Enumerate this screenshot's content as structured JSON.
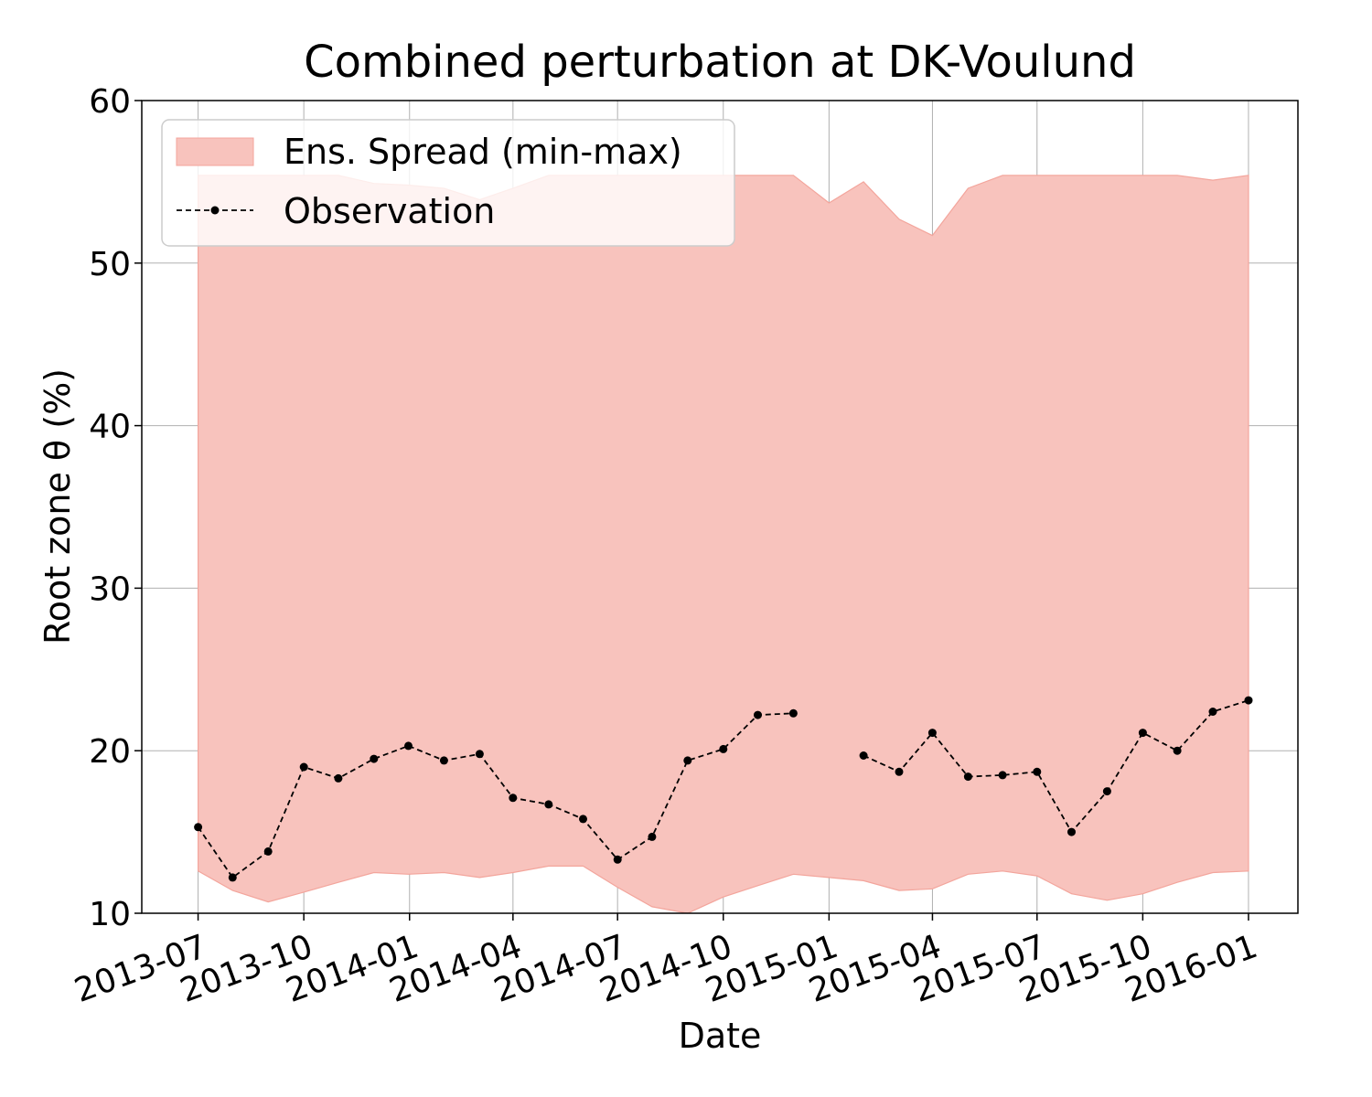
{
  "chart_data": {
    "type": "line",
    "title": "Combined perturbation at DK-Voulund",
    "xlabel": "Date",
    "ylabel": "Root zone θ  (%)",
    "ylim": [
      10,
      60
    ],
    "xlim": [
      "2013-05-13",
      "2016-02-13"
    ],
    "yticks": [
      10,
      20,
      30,
      40,
      50,
      60
    ],
    "xticks": [
      "2013-07",
      "2013-10",
      "2014-01",
      "2014-04",
      "2014-07",
      "2014-10",
      "2015-01",
      "2015-04",
      "2015-07",
      "2015-10",
      "2016-01"
    ],
    "grid": true,
    "legend_position": "upper-left",
    "colors": {
      "band": "#f8c3bd",
      "band_edge": "#f3a59c",
      "observation": "#000000"
    },
    "band": {
      "name": "Ens. Spread (min-max)",
      "x": [
        "2013-07-01",
        "2013-07-31",
        "2013-08-31",
        "2013-10-01",
        "2013-10-31",
        "2013-12-01",
        "2013-12-31",
        "2014-01-31",
        "2014-03-03",
        "2014-04-01",
        "2014-05-02",
        "2014-06-01",
        "2014-07-01",
        "2014-07-31",
        "2014-08-31",
        "2014-10-01",
        "2014-10-31",
        "2014-12-01",
        "2015-01-01",
        "2015-01-31",
        "2015-03-03",
        "2015-04-01",
        "2015-05-02",
        "2015-06-01",
        "2015-07-01",
        "2015-07-31",
        "2015-08-31",
        "2015-10-01",
        "2015-10-31",
        "2015-12-01",
        "2016-01-01"
      ],
      "upper": [
        55.4,
        55.4,
        55.4,
        55.4,
        55.4,
        54.9,
        54.8,
        54.6,
        53.9,
        54.6,
        55.4,
        55.4,
        55.4,
        55.4,
        55.4,
        55.4,
        55.4,
        55.4,
        53.7,
        55.0,
        52.7,
        51.7,
        54.6,
        55.4,
        55.4,
        55.4,
        55.4,
        55.4,
        55.4,
        55.1,
        55.4
      ],
      "lower": [
        12.6,
        11.4,
        10.7,
        11.3,
        11.9,
        12.5,
        12.4,
        12.5,
        12.2,
        12.5,
        12.9,
        12.9,
        11.6,
        10.4,
        10.0,
        11.0,
        11.7,
        12.4,
        12.2,
        12.0,
        11.4,
        11.5,
        12.4,
        12.6,
        12.3,
        11.2,
        10.8,
        11.2,
        11.9,
        12.5,
        12.6
      ]
    },
    "series": [
      {
        "name": "Observation",
        "x": [
          "2013-07-01",
          "2013-07-31",
          "2013-08-31",
          "2013-10-01",
          "2013-10-31",
          "2013-12-01",
          "2013-12-31",
          "2014-01-31",
          "2014-03-03",
          "2014-04-01",
          "2014-05-02",
          "2014-06-01",
          "2014-07-01",
          "2014-07-31",
          "2014-08-31",
          "2014-10-01",
          "2014-10-31",
          "2014-12-01",
          "2015-01-01",
          "2015-01-31",
          "2015-03-03",
          "2015-04-01",
          "2015-05-02",
          "2015-06-01",
          "2015-07-01",
          "2015-07-31",
          "2015-08-31",
          "2015-10-01",
          "2015-10-31",
          "2015-12-01",
          "2016-01-01"
        ],
        "values": [
          15.3,
          12.2,
          13.8,
          19.0,
          18.3,
          19.5,
          20.3,
          19.4,
          19.8,
          17.1,
          16.7,
          15.8,
          13.3,
          14.7,
          19.4,
          20.1,
          22.2,
          22.3,
          null,
          19.7,
          18.7,
          21.1,
          18.4,
          18.5,
          18.7,
          15.0,
          17.5,
          21.1,
          20.0,
          22.4,
          23.1
        ]
      }
    ]
  }
}
